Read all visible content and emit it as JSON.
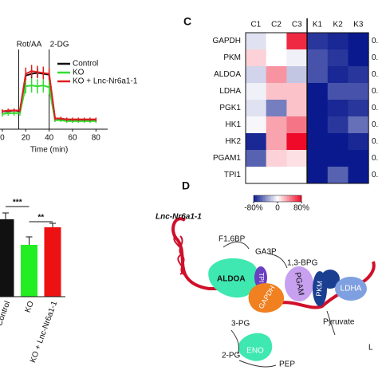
{
  "panels": {
    "c": "C",
    "d": "D"
  },
  "chart_data": [
    {
      "type": "line",
      "xlabel": "Time (min)",
      "x": [
        0,
        5,
        10,
        15,
        20,
        25,
        30,
        35,
        40,
        45,
        50,
        55,
        60,
        65,
        70,
        75,
        80
      ],
      "xlim": [
        -2,
        90
      ],
      "xticks": [
        0,
        20,
        40,
        60,
        80
      ],
      "ylim": [
        0,
        100
      ],
      "annotations": [
        {
          "text": "Rot/AA",
          "x": 14
        },
        {
          "text": "2-DG",
          "x": 40
        }
      ],
      "series": [
        {
          "name": "Control",
          "color": "#111111",
          "values": [
            20,
            20,
            21,
            20,
            60,
            62,
            63,
            62,
            61,
            12,
            11,
            11,
            10,
            10,
            10,
            10,
            10
          ],
          "errors": [
            2,
            2,
            2,
            2,
            5,
            5,
            5,
            5,
            5,
            2,
            2,
            2,
            2,
            2,
            2,
            2,
            2
          ]
        },
        {
          "name": "KO",
          "color": "#33dd33",
          "values": [
            17,
            18,
            18,
            18,
            48,
            49,
            48,
            49,
            47,
            10,
            10,
            9,
            9,
            9,
            9,
            9,
            9
          ],
          "errors": [
            3,
            3,
            3,
            3,
            8,
            8,
            8,
            8,
            8,
            2,
            2,
            2,
            2,
            2,
            2,
            2,
            2
          ]
        },
        {
          "name": "KO + Lnc-Nr6a1-1",
          "color": "#e02020",
          "values": [
            20,
            21,
            21,
            21,
            62,
            65,
            64,
            63,
            62,
            12,
            12,
            11,
            11,
            11,
            11,
            11,
            11
          ],
          "errors": [
            2,
            2,
            2,
            2,
            7,
            7,
            7,
            7,
            7,
            2,
            2,
            2,
            2,
            2,
            2,
            2,
            2
          ]
        }
      ]
    },
    {
      "type": "bar",
      "categories": [
        "Control",
        "KO",
        "KO + Lnc-Nr6a1-1"
      ],
      "values": [
        0.97,
        0.65,
        0.87
      ],
      "errors": [
        0.08,
        0.1,
        0.05
      ],
      "colors": [
        "#111111",
        "#22ee22",
        "#ee1111"
      ],
      "ylim": [
        0,
        1.2
      ],
      "significance": [
        {
          "text": "***",
          "from": 0,
          "to": 1
        },
        {
          "text": "**",
          "from": 1,
          "to": 2
        }
      ]
    },
    {
      "type": "heatmap",
      "columns": [
        "C1",
        "C2",
        "C3",
        "K1",
        "K2",
        "K3"
      ],
      "rows": [
        "GAPDH",
        "PKM",
        "ALDOA",
        "LDHA",
        "PGK1",
        "HK1",
        "HK2",
        "PGAM1",
        "TPI1"
      ],
      "values": [
        [
          -10,
          0,
          70,
          -70,
          -75,
          -80
        ],
        [
          15,
          0,
          -5,
          -60,
          -70,
          -80
        ],
        [
          -15,
          35,
          -20,
          -60,
          -75,
          -70
        ],
        [
          -5,
          20,
          20,
          -80,
          -60,
          -60
        ],
        [
          -10,
          -45,
          20,
          -80,
          -75,
          -70
        ],
        [
          -3,
          30,
          45,
          -80,
          -70,
          -50
        ],
        [
          -75,
          30,
          80,
          -80,
          -80,
          -75
        ],
        [
          -55,
          15,
          10,
          -80,
          -80,
          -80
        ],
        [
          0,
          0,
          0,
          -80,
          -55,
          -80
        ]
      ],
      "side_labels": [
        "0.",
        "0.",
        "0.",
        "0.",
        "0.",
        "0.",
        "0.",
        "0.",
        "0."
      ],
      "clim": [
        -80,
        80
      ],
      "colorbar_ticks": [
        {
          "value": -80,
          "label": "-80%"
        },
        0,
        {
          "value": 80,
          "label": "80%"
        }
      ],
      "low_color": "#0a1a8e",
      "high_color": "#ee0a28"
    }
  ],
  "diagram": {
    "rna": "Lnc-Nr6a1-1",
    "enzymes": [
      "ALDOA",
      "TPI",
      "GAPDH",
      "PGAM",
      "PKM",
      "LDHA",
      "ENO"
    ],
    "metabolites": [
      "F1,6BP",
      "GA3P",
      "1,3-BPG",
      "3-PG",
      "2-PG",
      "PEP",
      "Pyruvate",
      "L"
    ]
  }
}
